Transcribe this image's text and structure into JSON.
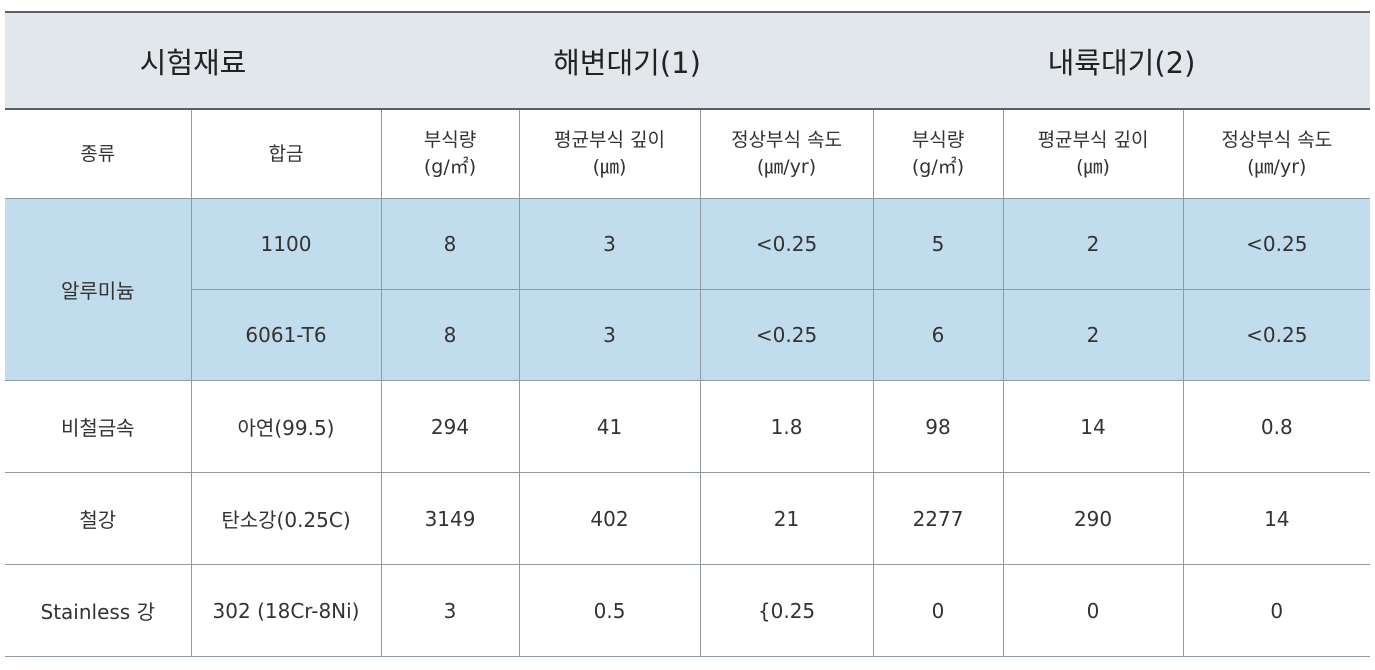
{
  "headers": {
    "material": "시험재료",
    "coastal": "해변대기(1)",
    "inland": "내륙대기(2)"
  },
  "subheaders": {
    "type": "종류",
    "alloy": "합금",
    "corrosion_amount": [
      "부식량",
      "(g/㎡)"
    ],
    "avg_depth": [
      "평균부식 깊이",
      "(㎛)"
    ],
    "steady_rate": [
      "정상부식 속도",
      "(㎛/yr)"
    ]
  },
  "rows": [
    {
      "type": "알루미늄",
      "alloy": "1100",
      "c_amount": "8",
      "c_depth": "3",
      "c_rate": "<0.25",
      "i_amount": "5",
      "i_depth": "2",
      "i_rate": "<0.25"
    },
    {
      "type": "",
      "alloy": "6061-T6",
      "c_amount": "8",
      "c_depth": "3",
      "c_rate": "<0.25",
      "i_amount": "6",
      "i_depth": "2",
      "i_rate": "<0.25"
    },
    {
      "type": "비철금속",
      "alloy": "아연(99.5)",
      "c_amount": "294",
      "c_depth": "41",
      "c_rate": "1.8",
      "i_amount": "98",
      "i_depth": "14",
      "i_rate": "0.8"
    },
    {
      "type": "철강",
      "alloy": "탄소강(0.25C)",
      "c_amount": "3149",
      "c_depth": "402",
      "c_rate": "21",
      "i_amount": "2277",
      "i_depth": "290",
      "i_rate": "14"
    },
    {
      "type": "Stainless 강",
      "alloy": "302 (18Cr-8Ni)",
      "c_amount": "3",
      "c_depth": "0.5",
      "c_rate": "{0.25",
      "i_amount": "0",
      "i_depth": "0",
      "i_rate": "0"
    }
  ],
  "colors": {
    "header_bg": "#e2e7ec",
    "highlight_bg": "#c1dced",
    "border": "#8f9aa3"
  }
}
